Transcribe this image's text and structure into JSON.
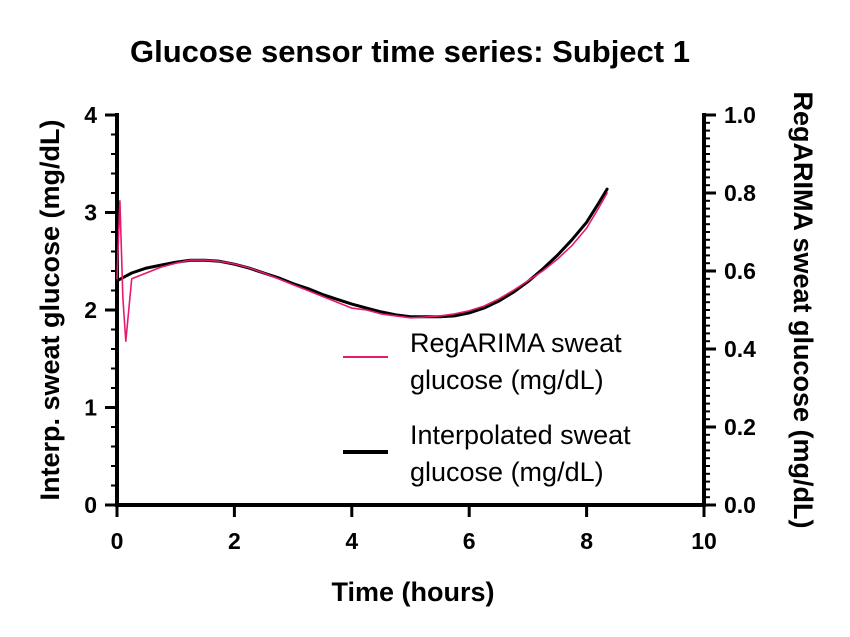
{
  "chart_data": {
    "type": "line",
    "title": "Glucose sensor time series: Subject 1",
    "xlabel": "Time (hours)",
    "ylabel": "Interp. sweat glucose (mg/dL)",
    "y2label": "RegARIMA sweat glucose (mg/dL)",
    "xlim": [
      0,
      10
    ],
    "ylim": [
      0,
      4
    ],
    "y2lim": [
      0.0,
      1.0
    ],
    "xticks": [
      "0",
      "2",
      "4",
      "6",
      "8",
      "10"
    ],
    "yticks": [
      "0",
      "1",
      "2",
      "3",
      "4"
    ],
    "y2ticks": [
      "0.0",
      "0.2",
      "0.4",
      "0.6",
      "0.8",
      "1.0"
    ],
    "grid": false,
    "legend_position": "center-right",
    "series": [
      {
        "name": "RegARIMA sweat glucose (mg/dL)",
        "legend_lines": [
          "RegARIMA sweat",
          "glucose (mg/dL)"
        ],
        "color": "#e8196f",
        "axis": "right",
        "x": [
          0.0,
          0.05,
          0.1,
          0.15,
          0.25,
          0.5,
          0.75,
          1.0,
          1.25,
          1.5,
          1.75,
          2.0,
          2.25,
          2.5,
          2.75,
          3.0,
          3.25,
          3.5,
          3.75,
          4.0,
          4.25,
          4.5,
          4.75,
          5.0,
          5.25,
          5.5,
          5.75,
          6.0,
          6.25,
          6.5,
          6.75,
          7.0,
          7.25,
          7.5,
          7.75,
          8.0,
          8.2,
          8.35
        ],
        "values": [
          0.58,
          0.78,
          0.53,
          0.42,
          0.58,
          0.595,
          0.61,
          0.62,
          0.628,
          0.628,
          0.625,
          0.618,
          0.608,
          0.595,
          0.58,
          0.565,
          0.55,
          0.535,
          0.52,
          0.505,
          0.5,
          0.49,
          0.485,
          0.48,
          0.482,
          0.485,
          0.49,
          0.498,
          0.51,
          0.528,
          0.55,
          0.575,
          0.6,
          0.63,
          0.665,
          0.71,
          0.76,
          0.8
        ]
      },
      {
        "name": "Interpolated sweat glucose (mg/dL)",
        "legend_lines": [
          "Interpolated sweat",
          "glucose (mg/dL)"
        ],
        "color": "#000000",
        "axis": "left",
        "x": [
          0.0,
          0.25,
          0.5,
          0.75,
          1.0,
          1.25,
          1.5,
          1.75,
          2.0,
          2.25,
          2.5,
          2.75,
          3.0,
          3.25,
          3.5,
          3.75,
          4.0,
          4.25,
          4.5,
          4.75,
          5.0,
          5.25,
          5.5,
          5.75,
          6.0,
          6.25,
          6.5,
          6.75,
          7.0,
          7.25,
          7.5,
          7.75,
          8.0,
          8.2,
          8.35
        ],
        "values": [
          2.3,
          2.38,
          2.43,
          2.46,
          2.49,
          2.51,
          2.51,
          2.5,
          2.47,
          2.43,
          2.38,
          2.33,
          2.27,
          2.22,
          2.16,
          2.11,
          2.06,
          2.02,
          1.98,
          1.95,
          1.93,
          1.93,
          1.93,
          1.94,
          1.97,
          2.02,
          2.09,
          2.18,
          2.29,
          2.42,
          2.56,
          2.72,
          2.9,
          3.09,
          3.24
        ]
      }
    ]
  }
}
